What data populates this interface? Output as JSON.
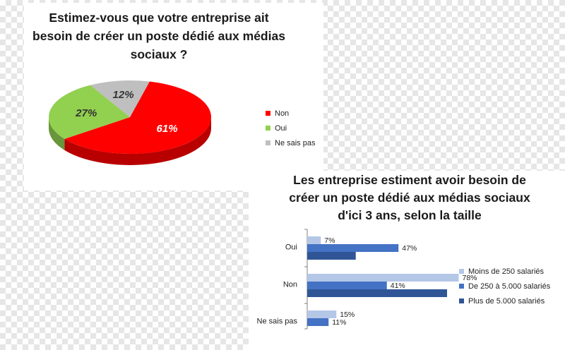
{
  "chart_data": [
    {
      "type": "pie",
      "title": "Estimez-vous que votre entreprise ait besoin de créer un poste dédié aux médias sociaux ?",
      "categories": [
        "Non",
        "Oui",
        "Ne sais pas"
      ],
      "values": [
        61,
        27,
        12
      ],
      "value_labels": [
        "61%",
        "27%",
        "12%"
      ],
      "colors": [
        "#ff0000",
        "#92d050",
        "#bfbfbf"
      ],
      "legend_position": "right"
    },
    {
      "type": "bar",
      "orientation": "horizontal",
      "title": "Les entreprise estiment avoir besoin de créer un poste dédié aux médias sociaux d'ici 3 ans, selon la taille",
      "categories": [
        "Oui",
        "Non",
        "Ne sais pas"
      ],
      "series": [
        {
          "name": "Moins de 250 salariés",
          "values": [
            7,
            78,
            15
          ],
          "labels": [
            "7%",
            "78%",
            "15%"
          ],
          "color": "#b4c7e7"
        },
        {
          "name": "De 250 à 5.000 salariés",
          "values": [
            47,
            41,
            11
          ],
          "labels": [
            "47%",
            "41%",
            "11%"
          ],
          "color": "#4472c4"
        },
        {
          "name": "Plus de 5.000 salariés",
          "values": [
            25,
            72,
            0
          ],
          "labels": [
            "",
            "",
            ""
          ],
          "color": "#2f5597"
        }
      ],
      "xlim": [
        0,
        100
      ],
      "legend_position": "right"
    }
  ]
}
